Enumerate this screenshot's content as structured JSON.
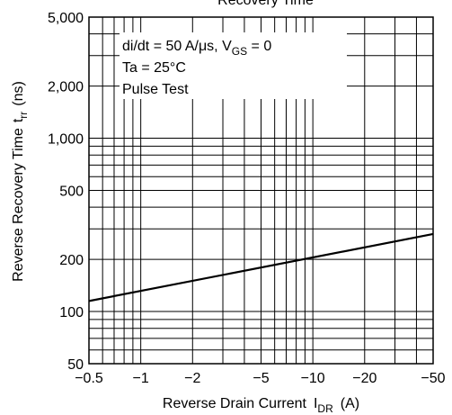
{
  "chart_data": {
    "type": "line",
    "title": "Recovery Time",
    "xlabel": "Reverse Drain Current",
    "xlabel_symbol": "I",
    "xlabel_sub": "DR",
    "xlabel_unit": "(A)",
    "ylabel": "Reverse Recovery Time",
    "ylabel_symbol": "t",
    "ylabel_sub": "rr",
    "ylabel_unit": "(ns)",
    "x_scale": "log",
    "y_scale": "log",
    "x_axis_reversed_sign": true,
    "xlim": [
      -0.5,
      -50
    ],
    "ylim": [
      50,
      5000
    ],
    "grid": true,
    "x_ticks": [
      -0.5,
      -1,
      -2,
      -5,
      -10,
      -20,
      -50
    ],
    "x_tick_labels": [
      "−0.5",
      "−1",
      "−2",
      "−5",
      "−10",
      "−20",
      "−50"
    ],
    "y_ticks": [
      50,
      100,
      200,
      500,
      1000,
      2000,
      5000
    ],
    "y_tick_labels": [
      "50",
      "100",
      "200",
      "500",
      "1,000",
      "2,000",
      "5,000"
    ],
    "annotation": {
      "line1_prefix": "di/dt = 50 A/μs, V",
      "line1_sub": "GS",
      "line1_suffix": " = 0",
      "line2": "Ta = 25°C",
      "line3": "Pulse Test"
    },
    "series": [
      {
        "x": [
          -0.5,
          -50
        ],
        "y": [
          115,
          280
        ]
      }
    ]
  },
  "colors": {
    "line": "#000000",
    "grid": "#000000",
    "background": "#ffffff"
  }
}
